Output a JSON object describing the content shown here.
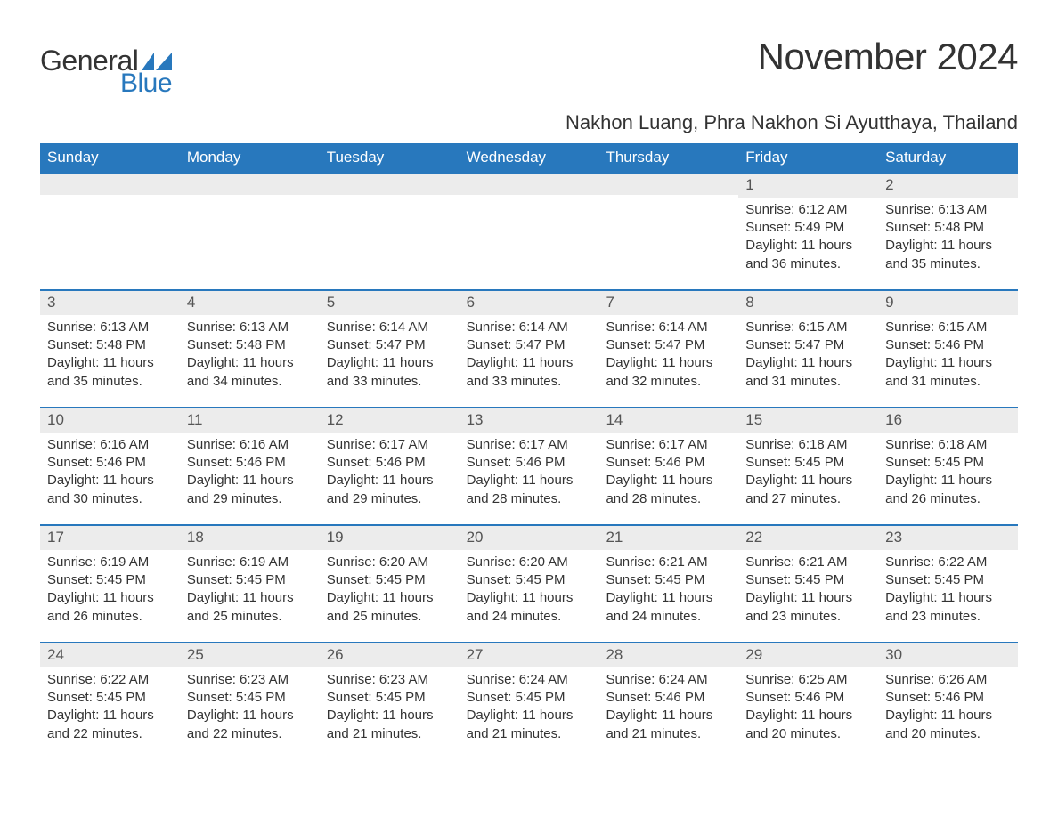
{
  "brand": {
    "text1": "General",
    "text2": "Blue",
    "color_dark": "#333333",
    "color_blue": "#2878bd"
  },
  "title": "November 2024",
  "location": "Nakhon Luang, Phra Nakhon Si Ayutthaya, Thailand",
  "colors": {
    "header_bg": "#2878bd",
    "header_fg": "#ffffff",
    "row_border": "#2878bd",
    "daynum_bg": "#ececec",
    "text": "#333333",
    "page_bg": "#ffffff"
  },
  "fonts": {
    "title_size": 42,
    "location_size": 22,
    "dow_size": 17,
    "body_size": 15
  },
  "days_of_week": [
    "Sunday",
    "Monday",
    "Tuesday",
    "Wednesday",
    "Thursday",
    "Friday",
    "Saturday"
  ],
  "weeks": [
    [
      {
        "empty": true
      },
      {
        "empty": true
      },
      {
        "empty": true
      },
      {
        "empty": true
      },
      {
        "empty": true
      },
      {
        "n": "1",
        "sunrise": "6:12 AM",
        "sunset": "5:49 PM",
        "daylight": "11 hours and 36 minutes."
      },
      {
        "n": "2",
        "sunrise": "6:13 AM",
        "sunset": "5:48 PM",
        "daylight": "11 hours and 35 minutes."
      }
    ],
    [
      {
        "n": "3",
        "sunrise": "6:13 AM",
        "sunset": "5:48 PM",
        "daylight": "11 hours and 35 minutes."
      },
      {
        "n": "4",
        "sunrise": "6:13 AM",
        "sunset": "5:48 PM",
        "daylight": "11 hours and 34 minutes."
      },
      {
        "n": "5",
        "sunrise": "6:14 AM",
        "sunset": "5:47 PM",
        "daylight": "11 hours and 33 minutes."
      },
      {
        "n": "6",
        "sunrise": "6:14 AM",
        "sunset": "5:47 PM",
        "daylight": "11 hours and 33 minutes."
      },
      {
        "n": "7",
        "sunrise": "6:14 AM",
        "sunset": "5:47 PM",
        "daylight": "11 hours and 32 minutes."
      },
      {
        "n": "8",
        "sunrise": "6:15 AM",
        "sunset": "5:47 PM",
        "daylight": "11 hours and 31 minutes."
      },
      {
        "n": "9",
        "sunrise": "6:15 AM",
        "sunset": "5:46 PM",
        "daylight": "11 hours and 31 minutes."
      }
    ],
    [
      {
        "n": "10",
        "sunrise": "6:16 AM",
        "sunset": "5:46 PM",
        "daylight": "11 hours and 30 minutes."
      },
      {
        "n": "11",
        "sunrise": "6:16 AM",
        "sunset": "5:46 PM",
        "daylight": "11 hours and 29 minutes."
      },
      {
        "n": "12",
        "sunrise": "6:17 AM",
        "sunset": "5:46 PM",
        "daylight": "11 hours and 29 minutes."
      },
      {
        "n": "13",
        "sunrise": "6:17 AM",
        "sunset": "5:46 PM",
        "daylight": "11 hours and 28 minutes."
      },
      {
        "n": "14",
        "sunrise": "6:17 AM",
        "sunset": "5:46 PM",
        "daylight": "11 hours and 28 minutes."
      },
      {
        "n": "15",
        "sunrise": "6:18 AM",
        "sunset": "5:45 PM",
        "daylight": "11 hours and 27 minutes."
      },
      {
        "n": "16",
        "sunrise": "6:18 AM",
        "sunset": "5:45 PM",
        "daylight": "11 hours and 26 minutes."
      }
    ],
    [
      {
        "n": "17",
        "sunrise": "6:19 AM",
        "sunset": "5:45 PM",
        "daylight": "11 hours and 26 minutes."
      },
      {
        "n": "18",
        "sunrise": "6:19 AM",
        "sunset": "5:45 PM",
        "daylight": "11 hours and 25 minutes."
      },
      {
        "n": "19",
        "sunrise": "6:20 AM",
        "sunset": "5:45 PM",
        "daylight": "11 hours and 25 minutes."
      },
      {
        "n": "20",
        "sunrise": "6:20 AM",
        "sunset": "5:45 PM",
        "daylight": "11 hours and 24 minutes."
      },
      {
        "n": "21",
        "sunrise": "6:21 AM",
        "sunset": "5:45 PM",
        "daylight": "11 hours and 24 minutes."
      },
      {
        "n": "22",
        "sunrise": "6:21 AM",
        "sunset": "5:45 PM",
        "daylight": "11 hours and 23 minutes."
      },
      {
        "n": "23",
        "sunrise": "6:22 AM",
        "sunset": "5:45 PM",
        "daylight": "11 hours and 23 minutes."
      }
    ],
    [
      {
        "n": "24",
        "sunrise": "6:22 AM",
        "sunset": "5:45 PM",
        "daylight": "11 hours and 22 minutes."
      },
      {
        "n": "25",
        "sunrise": "6:23 AM",
        "sunset": "5:45 PM",
        "daylight": "11 hours and 22 minutes."
      },
      {
        "n": "26",
        "sunrise": "6:23 AM",
        "sunset": "5:45 PM",
        "daylight": "11 hours and 21 minutes."
      },
      {
        "n": "27",
        "sunrise": "6:24 AM",
        "sunset": "5:45 PM",
        "daylight": "11 hours and 21 minutes."
      },
      {
        "n": "28",
        "sunrise": "6:24 AM",
        "sunset": "5:46 PM",
        "daylight": "11 hours and 21 minutes."
      },
      {
        "n": "29",
        "sunrise": "6:25 AM",
        "sunset": "5:46 PM",
        "daylight": "11 hours and 20 minutes."
      },
      {
        "n": "30",
        "sunrise": "6:26 AM",
        "sunset": "5:46 PM",
        "daylight": "11 hours and 20 minutes."
      }
    ]
  ],
  "labels": {
    "sunrise": "Sunrise: ",
    "sunset": "Sunset: ",
    "daylight": "Daylight: "
  }
}
